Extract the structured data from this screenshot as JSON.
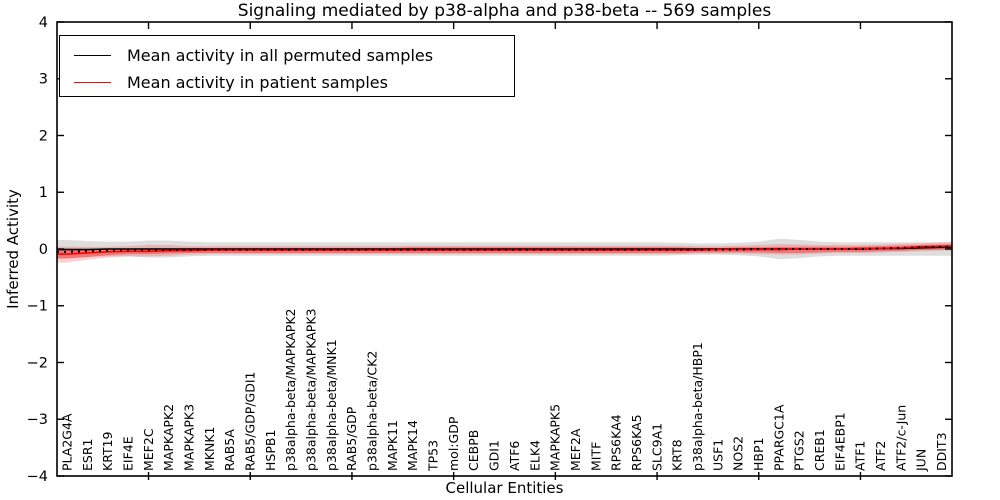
{
  "chart_data": {
    "type": "line",
    "title": "Signaling mediated by p38-alpha and p38-beta -- 569 samples",
    "xlabel": "Cellular Entities",
    "ylabel": "Inferred Activity",
    "ylim": [
      -4,
      4
    ],
    "yticks": [
      4,
      3,
      2,
      1,
      0,
      -1,
      -2,
      -3,
      -4
    ],
    "ytick_labels": [
      "4",
      "3",
      "2",
      "1",
      "0",
      "−1",
      "−2",
      "−3",
      "−4"
    ],
    "grid": false,
    "tick_direction": "in",
    "legend_position": "upper left",
    "x_minor_tick_every": 5,
    "categories": [
      "PLA2G4A",
      "ESR1",
      "KRT19",
      "EIF4E",
      "MEF2C",
      "MAPKAPK2",
      "MAPKAPK3",
      "MKNK1",
      "RAB5A",
      "RAB5/GDP/GDI1",
      "HSPB1",
      "p38alpha-beta/MAPKAPK2",
      "p38alpha-beta/MAPKAPK3",
      "p38alpha-beta/MNK1",
      "RAB5/GDP",
      "p38alpha-beta/CK2",
      "MAPK11",
      "MAPK14",
      "TP53",
      "mol:GDP",
      "CEBPB",
      "GDI1",
      "ATF6",
      "ELK4",
      "MAPKAPK5",
      "MEF2A",
      "MITF",
      "RPS6KA4",
      "RPS6KA5",
      "SLC9A1",
      "KRT8",
      "p38alpha-beta/HBP1",
      "USF1",
      "NOS2",
      "HBP1",
      "PPARGC1A",
      "PTGS2",
      "CREB1",
      "EIF4EBP1",
      "ATF1",
      "ATF2",
      "ATF2/c-Jun",
      "JUN",
      "DDIT3"
    ],
    "legend": [
      {
        "label": "Mean activity in all permuted samples",
        "color": "#000000"
      },
      {
        "label": "Mean activity in patient samples",
        "color": "#ff0000"
      }
    ],
    "series": [
      {
        "name": "Mean activity in all permuted samples",
        "color": "#000000",
        "dash": "",
        "width": 1.6,
        "values": [
          -0.01,
          -0.01,
          0,
          0,
          0,
          0,
          0,
          0,
          0,
          0,
          0,
          0,
          0,
          0,
          0,
          0,
          0,
          0,
          0,
          0,
          0,
          0,
          0,
          0,
          0,
          0,
          0,
          0,
          0,
          0,
          0,
          0,
          0,
          0,
          0,
          0,
          0,
          0,
          0,
          0,
          0.01,
          0.01,
          0.02,
          0.03
        ]
      },
      {
        "name": "Mean activity in patient samples",
        "color": "#ff0000",
        "dash": "",
        "width": 1.6,
        "values": [
          -0.09,
          -0.07,
          -0.05,
          -0.04,
          -0.04,
          -0.03,
          -0.03,
          -0.02,
          -0.02,
          -0.02,
          -0.02,
          -0.02,
          -0.02,
          -0.02,
          -0.02,
          -0.02,
          -0.02,
          -0.02,
          -0.02,
          -0.02,
          -0.02,
          -0.02,
          -0.02,
          -0.02,
          -0.02,
          -0.02,
          -0.02,
          -0.02,
          -0.02,
          -0.02,
          -0.02,
          -0.02,
          -0.01,
          -0.01,
          -0.01,
          -0.01,
          0,
          0,
          0,
          0.01,
          0.01,
          0.02,
          0.04,
          0.05
        ]
      },
      {
        "name": "unlabeled dotted overlay",
        "color": "#000000",
        "dash": "2 5",
        "width": 2,
        "values": [
          -0.05,
          -0.04,
          -0.03,
          -0.02,
          -0.02,
          -0.02,
          -0.01,
          -0.01,
          -0.01,
          -0.01,
          -0.01,
          -0.01,
          -0.01,
          -0.01,
          -0.01,
          -0.01,
          -0.01,
          -0.01,
          -0.01,
          -0.01,
          -0.01,
          -0.01,
          -0.01,
          -0.01,
          -0.01,
          -0.01,
          -0.01,
          -0.01,
          -0.01,
          -0.01,
          -0.01,
          -0.01,
          -0.01,
          -0.01,
          0,
          0,
          0,
          0,
          0,
          0,
          0.01,
          0.02,
          0.03,
          0.04
        ]
      }
    ],
    "bands": [
      {
        "name": "permuted samples confidence band",
        "color": "#000000",
        "opacity": 0.13,
        "upper": [
          0.16,
          0.14,
          0.13,
          0.13,
          0.15,
          0.15,
          0.13,
          0.12,
          0.12,
          0.12,
          0.12,
          0.12,
          0.12,
          0.12,
          0.12,
          0.12,
          0.12,
          0.12,
          0.12,
          0.12,
          0.12,
          0.12,
          0.12,
          0.12,
          0.12,
          0.12,
          0.12,
          0.12,
          0.12,
          0.12,
          0.11,
          0.1,
          0.1,
          0.11,
          0.13,
          0.18,
          0.16,
          0.13,
          0.12,
          0.12,
          0.12,
          0.12,
          0.12,
          0.12
        ],
        "lower": [
          -0.16,
          -0.14,
          -0.13,
          -0.13,
          -0.15,
          -0.15,
          -0.13,
          -0.12,
          -0.12,
          -0.12,
          -0.12,
          -0.12,
          -0.12,
          -0.12,
          -0.12,
          -0.12,
          -0.12,
          -0.12,
          -0.12,
          -0.12,
          -0.12,
          -0.12,
          -0.12,
          -0.12,
          -0.12,
          -0.12,
          -0.12,
          -0.12,
          -0.12,
          -0.12,
          -0.11,
          -0.1,
          -0.1,
          -0.11,
          -0.13,
          -0.18,
          -0.16,
          -0.13,
          -0.12,
          -0.12,
          -0.12,
          -0.12,
          -0.12,
          -0.12
        ]
      },
      {
        "name": "patient samples outer band",
        "color": "#ff0000",
        "opacity": 0.18,
        "upper": [
          0.04,
          0.04,
          0.04,
          0.05,
          0.07,
          0.07,
          0.05,
          0.05,
          0.05,
          0.05,
          0.05,
          0.05,
          0.05,
          0.05,
          0.05,
          0.05,
          0.05,
          0.06,
          0.06,
          0.06,
          0.06,
          0.06,
          0.06,
          0.06,
          0.06,
          0.06,
          0.06,
          0.06,
          0.06,
          0.06,
          0.06,
          0.05,
          0.05,
          0.06,
          0.07,
          0.09,
          0.08,
          0.07,
          0.07,
          0.07,
          0.08,
          0.09,
          0.1,
          0.12
        ],
        "lower": [
          -0.24,
          -0.19,
          -0.15,
          -0.13,
          -0.13,
          -0.12,
          -0.1,
          -0.09,
          -0.09,
          -0.09,
          -0.09,
          -0.09,
          -0.09,
          -0.09,
          -0.09,
          -0.09,
          -0.09,
          -0.09,
          -0.09,
          -0.09,
          -0.09,
          -0.09,
          -0.09,
          -0.09,
          -0.09,
          -0.09,
          -0.09,
          -0.09,
          -0.09,
          -0.09,
          -0.09,
          -0.08,
          -0.08,
          -0.08,
          -0.09,
          -0.1,
          -0.1,
          -0.08,
          -0.07,
          -0.07,
          -0.06,
          -0.05,
          -0.04,
          -0.03
        ]
      },
      {
        "name": "patient samples inner band",
        "color": "#ff0000",
        "opacity": 0.35,
        "upper": [
          0.01,
          0,
          0,
          0.01,
          0.02,
          0.02,
          0.02,
          0.02,
          0.02,
          0.02,
          0.02,
          0.02,
          0.02,
          0.02,
          0.02,
          0.02,
          0.02,
          0.03,
          0.03,
          0.03,
          0.03,
          0.03,
          0.03,
          0.03,
          0.03,
          0.03,
          0.03,
          0.03,
          0.03,
          0.03,
          0.03,
          0.02,
          0.02,
          0.03,
          0.03,
          0.04,
          0.04,
          0.04,
          0.04,
          0.04,
          0.05,
          0.06,
          0.07,
          0.08
        ],
        "lower": [
          -0.17,
          -0.14,
          -0.11,
          -0.09,
          -0.09,
          -0.08,
          -0.07,
          -0.07,
          -0.07,
          -0.07,
          -0.07,
          -0.07,
          -0.07,
          -0.07,
          -0.07,
          -0.07,
          -0.07,
          -0.07,
          -0.07,
          -0.07,
          -0.07,
          -0.07,
          -0.07,
          -0.07,
          -0.07,
          -0.07,
          -0.07,
          -0.07,
          -0.07,
          -0.07,
          -0.07,
          -0.06,
          -0.06,
          -0.06,
          -0.06,
          -0.07,
          -0.07,
          -0.06,
          -0.05,
          -0.05,
          -0.04,
          -0.03,
          -0.02,
          -0.01
        ]
      }
    ]
  }
}
